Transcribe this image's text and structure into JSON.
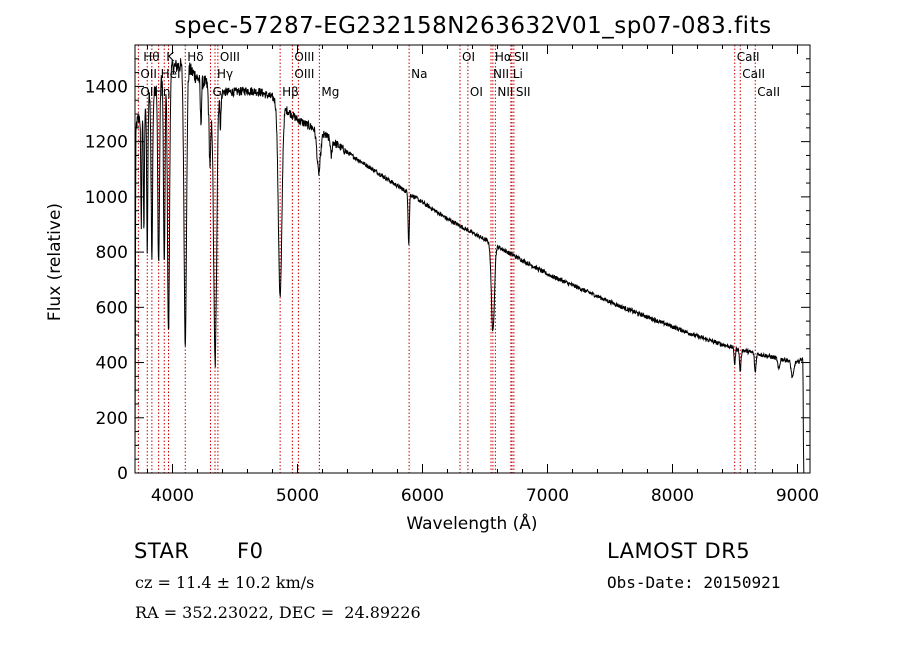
{
  "chart_data": {
    "type": "line",
    "title": "spec-57287-EG232158N263632V01_sp07-083.fits",
    "xlabel": "Wavelength (Å)",
    "ylabel": "Flux (relative)",
    "xlim": [
      3700,
      9100
    ],
    "ylim": [
      0,
      1550
    ],
    "x_ticks": [
      4000,
      5000,
      6000,
      7000,
      8000,
      9000
    ],
    "y_ticks": [
      0,
      200,
      400,
      600,
      800,
      1000,
      1200,
      1400
    ],
    "grid": false,
    "continuum": {
      "x": [
        3700,
        3800,
        3900,
        4000,
        4100,
        4200,
        4300,
        4400,
        4500,
        4600,
        4700,
        4800,
        4900,
        5000,
        5200,
        5400,
        5600,
        5800,
        6000,
        6200,
        6400,
        6600,
        6800,
        7000,
        7200,
        7400,
        7600,
        7800,
        8000,
        8200,
        8400,
        8600,
        8800,
        9000,
        9050
      ],
      "y": [
        1250,
        1360,
        1420,
        1470,
        1480,
        1430,
        1400,
        1380,
        1380,
        1385,
        1380,
        1360,
        1320,
        1280,
        1230,
        1160,
        1100,
        1040,
        980,
        920,
        870,
        820,
        770,
        720,
        680,
        640,
        600,
        565,
        530,
        495,
        465,
        440,
        420,
        400,
        420
      ]
    },
    "absorption_lines": [
      {
        "x": 3700,
        "depth": 1200,
        "width": 3
      },
      {
        "x": 3750,
        "depth": 400,
        "width": 4
      },
      {
        "x": 3771,
        "depth": 450,
        "width": 4
      },
      {
        "x": 3798,
        "depth": 550,
        "width": 5
      },
      {
        "x": 3835,
        "depth": 600,
        "width": 6
      },
      {
        "x": 3889,
        "depth": 650,
        "width": 7
      },
      {
        "x": 3934,
        "depth": 700,
        "width": 6
      },
      {
        "x": 3968,
        "depth": 950,
        "width": 8
      },
      {
        "x": 4102,
        "depth": 1000,
        "width": 10
      },
      {
        "x": 4227,
        "depth": 150,
        "width": 5
      },
      {
        "x": 4300,
        "depth": 280,
        "width": 8
      },
      {
        "x": 4341,
        "depth": 1000,
        "width": 12
      },
      {
        "x": 4384,
        "depth": 120,
        "width": 5
      },
      {
        "x": 4861,
        "depth": 700,
        "width": 14
      },
      {
        "x": 5170,
        "depth": 150,
        "width": 14
      },
      {
        "x": 5270,
        "depth": 60,
        "width": 6
      },
      {
        "x": 5890,
        "depth": 180,
        "width": 5
      },
      {
        "x": 6563,
        "depth": 320,
        "width": 12
      },
      {
        "x": 8498,
        "depth": 60,
        "width": 5
      },
      {
        "x": 8542,
        "depth": 80,
        "width": 6
      },
      {
        "x": 8662,
        "depth": 70,
        "width": 6
      },
      {
        "x": 8850,
        "depth": 40,
        "width": 8
      },
      {
        "x": 8960,
        "depth": 60,
        "width": 10
      },
      {
        "x": 9050,
        "depth": 420,
        "width": 3
      }
    ],
    "line_markers": [
      3727,
      3798,
      3835,
      3889,
      3934,
      3968,
      4102,
      4304,
      4340,
      4363,
      4861,
      4959,
      5007,
      5175,
      5893,
      6300,
      6363,
      6548,
      6563,
      6583,
      6707,
      6716,
      6731,
      8498,
      8542,
      8662
    ],
    "line_labels": [
      {
        "text": "Hθ",
        "x": 3750,
        "row": 0
      },
      {
        "text": "K",
        "x": 3934,
        "row": 0
      },
      {
        "text": "Hδ",
        "x": 4102,
        "row": 0
      },
      {
        "text": "OIII",
        "x": 4363,
        "row": 0
      },
      {
        "text": "OIII",
        "x": 4959,
        "row": 0
      },
      {
        "text": "OI",
        "x": 6300,
        "row": 0
      },
      {
        "text": "Hα",
        "x": 6563,
        "row": 0
      },
      {
        "text": "SII",
        "x": 6716,
        "row": 0
      },
      {
        "text": "CaII",
        "x": 8498,
        "row": 0
      },
      {
        "text": "OII",
        "x": 3727,
        "row": 1
      },
      {
        "text": "HeI",
        "x": 3889,
        "row": 1
      },
      {
        "text": "Hγ",
        "x": 4340,
        "row": 1
      },
      {
        "text": "OIII",
        "x": 4959,
        "row": 1
      },
      {
        "text": "Na",
        "x": 5893,
        "row": 1
      },
      {
        "text": "NII",
        "x": 6548,
        "row": 1
      },
      {
        "text": "Li",
        "x": 6707,
        "row": 1
      },
      {
        "text": "CaII",
        "x": 8542,
        "row": 1
      },
      {
        "text": "OII",
        "x": 3727,
        "row": 2
      },
      {
        "text": "Hη",
        "x": 3835,
        "row": 2
      },
      {
        "text": "G",
        "x": 4304,
        "row": 2
      },
      {
        "text": "Hβ",
        "x": 4861,
        "row": 2
      },
      {
        "text": "Mg",
        "x": 5175,
        "row": 2
      },
      {
        "text": "OI",
        "x": 6363,
        "row": 2
      },
      {
        "text": "NII",
        "x": 6583,
        "row": 2
      },
      {
        "text": "SII",
        "x": 6731,
        "row": 2
      },
      {
        "text": "CaII",
        "x": 8662,
        "row": 2
      }
    ]
  },
  "info": {
    "object_class": "STAR",
    "subclass": "F0",
    "survey": "LAMOST DR5",
    "redshift": "cz = 11.4 ± 10.2 km/s",
    "obs_date": "Obs-Date: 20150921",
    "coords": "RA = 352.23022, DEC =  24.89226"
  },
  "colors": {
    "spectrum": "#000000",
    "marker": "#cc0000",
    "axes": "#000000",
    "background": "#ffffff"
  }
}
